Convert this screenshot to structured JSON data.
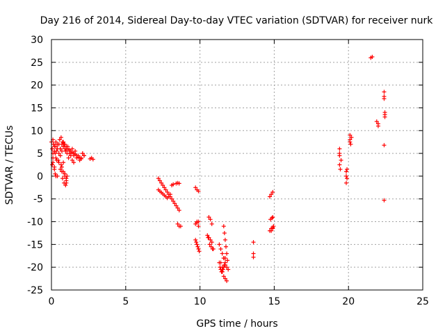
{
  "chart_data": {
    "type": "scatter",
    "title": "Day 216 of 2014, Sidereal Day-to-day VTEC variation (SDTVAR) for receiver nurk",
    "xlabel": "GPS time / hours",
    "ylabel": "SDTVAR / TECUs",
    "xlim": [
      0,
      25
    ],
    "ylim": [
      -25,
      30
    ],
    "xticks": [
      0,
      5,
      10,
      15,
      20,
      25
    ],
    "yticks": [
      -25,
      -20,
      -15,
      -10,
      -5,
      0,
      5,
      10,
      15,
      20,
      25,
      30
    ],
    "grid": true,
    "legend": "none",
    "marker_color": "#ff0000",
    "series": [
      {
        "name": "SDTVAR",
        "x": [
          0.0,
          0.05,
          0.1,
          0.1,
          0.15,
          0.2,
          0.2,
          0.25,
          0.3,
          0.3,
          0.35,
          0.4,
          0.4,
          0.45,
          0.5,
          0.5,
          0.55,
          0.6,
          0.6,
          0.65,
          0.7,
          0.7,
          0.75,
          0.8,
          0.8,
          0.85,
          0.9,
          0.9,
          0.95,
          1.0,
          1.0,
          1.05,
          1.1,
          1.15,
          1.2,
          1.3,
          1.4,
          1.5,
          1.6,
          1.7,
          1.8,
          1.9,
          2.0,
          2.1,
          2.2,
          0.1,
          0.15,
          0.2,
          0.25,
          0.3,
          0.4,
          0.5,
          0.6,
          0.7,
          0.8,
          0.9,
          1.0,
          0.7,
          0.8,
          0.9,
          1.0,
          1.1,
          1.2,
          1.3,
          1.4,
          1.5,
          0.75,
          0.85,
          0.95,
          1.05,
          0.2,
          0.3,
          0.35,
          0.05,
          0.1,
          2.6,
          2.7,
          2.8,
          0.6,
          0.65,
          0.9,
          1.0,
          1.1,
          1.2,
          1.3,
          1.4,
          1.5,
          1.6,
          1.7,
          1.8,
          1.9,
          2.0,
          2.1,
          2.2,
          7.2,
          7.3,
          7.4,
          7.5,
          7.6,
          7.7,
          7.8,
          7.9,
          8.0,
          8.1,
          8.2,
          8.3,
          8.4,
          8.5,
          8.6,
          7.2,
          7.3,
          7.4,
          7.5,
          7.6,
          7.7,
          7.8,
          7.9,
          8.0,
          8.1,
          8.2,
          8.4,
          8.5,
          8.6,
          8.6,
          8.5,
          8.7,
          9.7,
          9.8,
          9.9,
          9.7,
          9.8,
          9.9,
          9.7,
          9.75,
          9.8,
          9.85,
          9.9,
          9.95,
          9.9,
          9.8,
          10.5,
          10.6,
          10.7,
          10.8,
          10.6,
          10.7,
          10.8,
          10.55,
          10.65,
          10.75,
          10.85,
          10.9,
          11.3,
          11.4,
          11.5,
          11.6,
          11.7,
          11.8,
          11.9,
          11.5,
          11.6,
          11.7,
          11.8,
          11.6,
          11.65,
          11.7,
          11.75,
          11.8,
          11.85,
          11.4,
          11.5,
          11.6,
          11.7,
          11.3,
          11.35,
          11.4,
          11.45,
          11.5,
          11.55,
          11.6,
          11.65,
          11.7,
          13.6,
          13.6,
          13.6,
          14.7,
          14.8,
          14.9,
          14.75,
          14.85,
          14.9,
          14.8,
          14.9,
          14.95,
          14.7,
          14.8,
          14.9,
          19.4,
          19.4,
          19.4,
          19.45,
          19.5,
          19.4,
          19.85,
          19.85,
          19.85,
          19.9,
          19.9,
          20.1,
          20.1,
          20.1,
          20.15,
          20.2,
          21.5,
          21.6,
          21.9,
          22.0,
          22.0,
          22.4,
          22.4,
          22.4,
          22.45,
          22.45,
          22.45,
          22.4,
          22.4
        ],
        "y": [
          7.5,
          6.0,
          5.0,
          3.0,
          7.0,
          2.0,
          6.5,
          0.5,
          4.0,
          7.5,
          5.5,
          0.0,
          6.0,
          3.5,
          7.0,
          5.0,
          8.0,
          6.0,
          4.5,
          8.5,
          7.0,
          5.5,
          7.5,
          6.5,
          3.0,
          7.0,
          6.0,
          0.5,
          5.5,
          6.0,
          -1.5,
          5.0,
          6.5,
          4.0,
          5.5,
          5.0,
          6.0,
          4.5,
          5.5,
          4.0,
          4.5,
          3.5,
          4.0,
          5.0,
          4.5,
          8.0,
          7.0,
          5.5,
          5.0,
          6.5,
          7.0,
          3.0,
          6.0,
          1.0,
          7.5,
          0.0,
          -1.0,
          2.0,
          1.0,
          0.5,
          -0.5,
          6.0,
          5.0,
          4.5,
          3.5,
          3.0,
          -0.5,
          -1.5,
          -2.0,
          0.0,
          1.5,
          0.0,
          3.5,
          2.5,
          4.0,
          3.8,
          4.0,
          3.7,
          1.5,
          2.5,
          7.0,
          6.5,
          6.0,
          5.8,
          5.5,
          5.2,
          5.0,
          4.8,
          4.5,
          4.2,
          4.0,
          3.8,
          5.0,
          4.5,
          -0.5,
          -1.0,
          -1.5,
          -2.0,
          -2.5,
          -3.0,
          -3.5,
          -4.0,
          -4.5,
          -5.0,
          -5.5,
          -6.0,
          -6.5,
          -7.0,
          -7.5,
          -3.0,
          -3.3,
          -3.6,
          -3.9,
          -4.2,
          -4.5,
          -4.8,
          -4.5,
          -4.0,
          -2.0,
          -1.8,
          -1.6,
          -1.5,
          -1.6,
          -11.0,
          -10.5,
          -11.0,
          -2.5,
          -3.0,
          -3.3,
          -10.5,
          -10.0,
          -11.0,
          -14.0,
          -14.5,
          -15.0,
          -15.5,
          -16.0,
          -16.5,
          -10.0,
          -10.2,
          -13.0,
          -13.5,
          -14.0,
          -14.5,
          -9.0,
          -9.5,
          -10.5,
          -13.5,
          -15.0,
          -15.5,
          -16.0,
          -16.0,
          -15.0,
          -16.0,
          -17.0,
          -18.0,
          -19.0,
          -20.0,
          -20.5,
          -21.0,
          -22.0,
          -22.5,
          -23.0,
          -11.0,
          -12.5,
          -14.0,
          -15.5,
          -17.0,
          -18.5,
          -19.0,
          -20.0,
          -18.0,
          -19.5,
          -19.0,
          -20.0,
          -20.5,
          -21.0,
          -21.0,
          -20.5,
          -20.0,
          -19.5,
          -18.0,
          -14.5,
          -17.0,
          -17.8,
          -4.5,
          -4.0,
          -3.5,
          -9.5,
          -9.2,
          -9.0,
          -12.0,
          -11.5,
          -11.0,
          -12.0,
          -11.5,
          -11.3,
          6.0,
          4.5,
          2.5,
          1.5,
          3.5,
          5.0,
          1.0,
          0.0,
          -1.5,
          -0.5,
          1.5,
          9.0,
          7.5,
          8.0,
          7.0,
          8.5,
          26.0,
          26.2,
          12.0,
          11.5,
          11.0,
          18.5,
          17.5,
          17.0,
          14.0,
          13.5,
          13.0,
          6.8,
          -5.3
        ]
      }
    ]
  }
}
